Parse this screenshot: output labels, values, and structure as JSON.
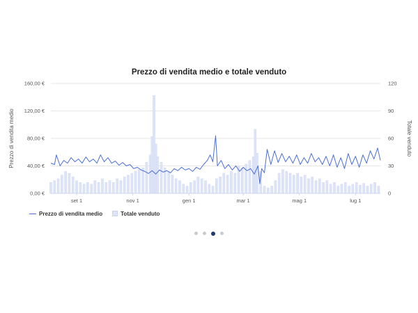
{
  "chart_data": {
    "type": "bar+line",
    "title": "Prezzo di vendita medio e totale venduto",
    "y_left": {
      "label": "Prezzo di vendita medio",
      "ylim": [
        0,
        160
      ],
      "ticks": [
        0,
        40,
        80,
        120,
        160
      ],
      "tick_labels": [
        "0,00 €",
        "40,00 €",
        "80,00 €",
        "120,00 €",
        "160,00 €"
      ]
    },
    "y_right": {
      "label": "Totale venduto",
      "ylim": [
        0,
        120
      ],
      "ticks": [
        0,
        30,
        60,
        90,
        120
      ],
      "tick_labels": [
        "0",
        "30",
        "60",
        "90",
        "120"
      ]
    },
    "x": {
      "start": "2022-08-04",
      "end": "2023-07-28",
      "ticks": [
        "2022-09-01",
        "2022-11-01",
        "2023-01-01",
        "2023-03-01",
        "2023-05-01",
        "2023-07-01"
      ],
      "tick_labels": [
        "set 1",
        "nov 1",
        "gen 1",
        "mar 1",
        "mag 1",
        "lug 1"
      ]
    },
    "grid": true,
    "legend_position": "bottom-left",
    "series": [
      {
        "name": "Prezzo di vendita medio",
        "type": "line",
        "axis": "left",
        "color": "#4a6fd6",
        "points": [
          [
            "2022-08-04",
            44
          ],
          [
            "2022-08-08",
            42
          ],
          [
            "2022-08-10",
            56
          ],
          [
            "2022-08-14",
            40
          ],
          [
            "2022-08-18",
            48
          ],
          [
            "2022-08-22",
            44
          ],
          [
            "2022-08-26",
            52
          ],
          [
            "2022-08-30",
            46
          ],
          [
            "2022-09-03",
            50
          ],
          [
            "2022-09-07",
            44
          ],
          [
            "2022-09-11",
            53
          ],
          [
            "2022-09-15",
            46
          ],
          [
            "2022-09-19",
            50
          ],
          [
            "2022-09-23",
            44
          ],
          [
            "2022-09-27",
            56
          ],
          [
            "2022-10-01",
            46
          ],
          [
            "2022-10-05",
            52
          ],
          [
            "2022-10-09",
            44
          ],
          [
            "2022-10-13",
            47
          ],
          [
            "2022-10-17",
            41
          ],
          [
            "2022-10-21",
            45
          ],
          [
            "2022-10-25",
            40
          ],
          [
            "2022-10-29",
            42
          ],
          [
            "2022-11-02",
            36
          ],
          [
            "2022-11-06",
            38
          ],
          [
            "2022-11-10",
            34
          ],
          [
            "2022-11-14",
            32
          ],
          [
            "2022-11-18",
            29
          ],
          [
            "2022-11-22",
            33
          ],
          [
            "2022-11-26",
            28
          ],
          [
            "2022-11-30",
            34
          ],
          [
            "2022-12-04",
            31
          ],
          [
            "2022-12-08",
            33
          ],
          [
            "2022-12-12",
            30
          ],
          [
            "2022-12-16",
            36
          ],
          [
            "2022-12-20",
            33
          ],
          [
            "2022-12-24",
            38
          ],
          [
            "2022-12-28",
            34
          ],
          [
            "2023-01-01",
            36
          ],
          [
            "2023-01-05",
            32
          ],
          [
            "2023-01-09",
            38
          ],
          [
            "2023-01-13",
            35
          ],
          [
            "2023-01-17",
            42
          ],
          [
            "2023-01-21",
            48
          ],
          [
            "2023-01-24",
            56
          ],
          [
            "2023-01-27",
            46
          ],
          [
            "2023-01-30",
            84
          ],
          [
            "2023-02-01",
            40
          ],
          [
            "2023-02-05",
            48
          ],
          [
            "2023-02-09",
            36
          ],
          [
            "2023-02-13",
            42
          ],
          [
            "2023-02-17",
            34
          ],
          [
            "2023-02-21",
            40
          ],
          [
            "2023-02-25",
            32
          ],
          [
            "2023-03-01",
            38
          ],
          [
            "2023-03-05",
            33
          ],
          [
            "2023-03-09",
            36
          ],
          [
            "2023-03-13",
            28
          ],
          [
            "2023-03-17",
            40
          ],
          [
            "2023-03-19",
            14
          ],
          [
            "2023-03-21",
            36
          ],
          [
            "2023-03-24",
            30
          ],
          [
            "2023-03-27",
            64
          ],
          [
            "2023-03-31",
            42
          ],
          [
            "2023-04-04",
            62
          ],
          [
            "2023-04-08",
            45
          ],
          [
            "2023-04-12",
            58
          ],
          [
            "2023-04-16",
            46
          ],
          [
            "2023-04-20",
            54
          ],
          [
            "2023-04-24",
            44
          ],
          [
            "2023-04-28",
            56
          ],
          [
            "2023-05-02",
            42
          ],
          [
            "2023-05-06",
            52
          ],
          [
            "2023-05-10",
            44
          ],
          [
            "2023-05-14",
            58
          ],
          [
            "2023-05-18",
            46
          ],
          [
            "2023-05-22",
            52
          ],
          [
            "2023-05-26",
            42
          ],
          [
            "2023-05-30",
            54
          ],
          [
            "2023-06-03",
            40
          ],
          [
            "2023-06-07",
            56
          ],
          [
            "2023-06-11",
            38
          ],
          [
            "2023-06-15",
            52
          ],
          [
            "2023-06-19",
            36
          ],
          [
            "2023-06-23",
            58
          ],
          [
            "2023-06-27",
            42
          ],
          [
            "2023-07-01",
            54
          ],
          [
            "2023-07-05",
            38
          ],
          [
            "2023-07-09",
            56
          ],
          [
            "2023-07-13",
            44
          ],
          [
            "2023-07-17",
            62
          ],
          [
            "2023-07-21",
            50
          ],
          [
            "2023-07-25",
            66
          ],
          [
            "2023-07-28",
            48
          ]
        ]
      },
      {
        "name": "Totale venduto",
        "type": "bar",
        "axis": "right",
        "color": "#dde4f7",
        "points": [
          [
            "2022-08-04",
            12
          ],
          [
            "2022-08-08",
            14
          ],
          [
            "2022-08-12",
            16
          ],
          [
            "2022-08-16",
            20
          ],
          [
            "2022-08-20",
            24
          ],
          [
            "2022-08-24",
            22
          ],
          [
            "2022-08-28",
            18
          ],
          [
            "2022-09-01",
            14
          ],
          [
            "2022-09-05",
            12
          ],
          [
            "2022-09-09",
            10
          ],
          [
            "2022-09-13",
            12
          ],
          [
            "2022-09-17",
            10
          ],
          [
            "2022-09-21",
            14
          ],
          [
            "2022-09-25",
            12
          ],
          [
            "2022-09-29",
            16
          ],
          [
            "2022-10-03",
            12
          ],
          [
            "2022-10-07",
            14
          ],
          [
            "2022-10-11",
            12
          ],
          [
            "2022-10-15",
            16
          ],
          [
            "2022-10-19",
            14
          ],
          [
            "2022-10-23",
            18
          ],
          [
            "2022-10-27",
            20
          ],
          [
            "2022-10-31",
            22
          ],
          [
            "2022-11-04",
            24
          ],
          [
            "2022-11-08",
            26
          ],
          [
            "2022-11-12",
            28
          ],
          [
            "2022-11-16",
            34
          ],
          [
            "2022-11-20",
            42
          ],
          [
            "2022-11-22",
            62
          ],
          [
            "2022-11-24",
            107
          ],
          [
            "2022-11-26",
            54
          ],
          [
            "2022-11-28",
            40
          ],
          [
            "2022-12-02",
            34
          ],
          [
            "2022-12-06",
            28
          ],
          [
            "2022-12-10",
            24
          ],
          [
            "2022-12-14",
            20
          ],
          [
            "2022-12-18",
            16
          ],
          [
            "2022-12-22",
            14
          ],
          [
            "2022-12-26",
            10
          ],
          [
            "2022-12-30",
            8
          ],
          [
            "2023-01-03",
            12
          ],
          [
            "2023-01-07",
            14
          ],
          [
            "2023-01-11",
            18
          ],
          [
            "2023-01-15",
            16
          ],
          [
            "2023-01-19",
            14
          ],
          [
            "2023-01-23",
            10
          ],
          [
            "2023-01-27",
            8
          ],
          [
            "2023-01-31",
            16
          ],
          [
            "2023-02-04",
            18
          ],
          [
            "2023-02-08",
            22
          ],
          [
            "2023-02-12",
            20
          ],
          [
            "2023-02-16",
            24
          ],
          [
            "2023-02-20",
            22
          ],
          [
            "2023-02-24",
            30
          ],
          [
            "2023-02-28",
            28
          ],
          [
            "2023-03-04",
            32
          ],
          [
            "2023-03-08",
            36
          ],
          [
            "2023-03-12",
            40
          ],
          [
            "2023-03-14",
            70
          ],
          [
            "2023-03-16",
            44
          ],
          [
            "2023-03-20",
            24
          ],
          [
            "2023-03-24",
            8
          ],
          [
            "2023-03-28",
            6
          ],
          [
            "2023-04-01",
            8
          ],
          [
            "2023-04-05",
            14
          ],
          [
            "2023-04-09",
            22
          ],
          [
            "2023-04-13",
            26
          ],
          [
            "2023-04-17",
            24
          ],
          [
            "2023-04-21",
            22
          ],
          [
            "2023-04-25",
            20
          ],
          [
            "2023-04-29",
            22
          ],
          [
            "2023-05-03",
            18
          ],
          [
            "2023-05-07",
            20
          ],
          [
            "2023-05-11",
            16
          ],
          [
            "2023-05-15",
            18
          ],
          [
            "2023-05-19",
            14
          ],
          [
            "2023-05-23",
            16
          ],
          [
            "2023-05-27",
            12
          ],
          [
            "2023-05-31",
            14
          ],
          [
            "2023-06-04",
            10
          ],
          [
            "2023-06-08",
            12
          ],
          [
            "2023-06-12",
            8
          ],
          [
            "2023-06-16",
            10
          ],
          [
            "2023-06-20",
            12
          ],
          [
            "2023-06-24",
            8
          ],
          [
            "2023-06-28",
            10
          ],
          [
            "2023-07-02",
            12
          ],
          [
            "2023-07-06",
            9
          ],
          [
            "2023-07-10",
            11
          ],
          [
            "2023-07-14",
            8
          ],
          [
            "2023-07-18",
            10
          ],
          [
            "2023-07-22",
            12
          ],
          [
            "2023-07-26",
            8
          ]
        ]
      }
    ]
  },
  "pager": {
    "dots": 4,
    "active_index": 2
  }
}
